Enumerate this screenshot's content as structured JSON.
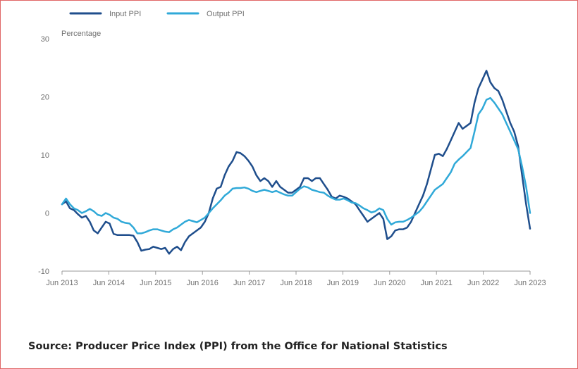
{
  "colors": {
    "input": "#1f4e8c",
    "output": "#30a9d8",
    "axis": "#9a9a9a",
    "frame": "#e06666"
  },
  "source_text": "Source: Producer Price Index (PPI) from the Office for National Statistics",
  "chart_data": {
    "type": "line",
    "ylabel": "Percentage",
    "ylim": [
      -10,
      30
    ],
    "yticks": [
      30,
      20,
      10,
      0,
      -10
    ],
    "xticks": [
      "Jun 2013",
      "Jun 2014",
      "Jun 2015",
      "Jun 2016",
      "Jun 2017",
      "Jun 2018",
      "Jun 2019",
      "Jun 2020",
      "Jun 2021",
      "Jun 2022",
      "Jun 2023"
    ],
    "x_start": "Jun 2013",
    "x_end": "Jun 2023",
    "grid": false,
    "legend_position": "top-left",
    "series": [
      {
        "name": "Input PPI",
        "color": "#1f4e8c",
        "values": [
          1.5,
          2.0,
          0.8,
          0.5,
          -0.2,
          -0.8,
          -0.5,
          -1.5,
          -3.0,
          -3.5,
          -2.5,
          -1.5,
          -1.8,
          -3.6,
          -3.8,
          -3.8,
          -3.8,
          -3.8,
          -3.9,
          -5.0,
          -6.5,
          -6.3,
          -6.2,
          -5.8,
          -6.0,
          -6.2,
          -6.0,
          -7.0,
          -6.2,
          -5.8,
          -6.4,
          -5.0,
          -4.0,
          -3.5,
          -3.0,
          -2.5,
          -1.5,
          0.0,
          2.5,
          4.2,
          4.5,
          6.5,
          8.0,
          9.0,
          10.5,
          10.3,
          9.8,
          9.0,
          8.0,
          6.5,
          5.5,
          6.0,
          5.5,
          4.5,
          5.5,
          4.5,
          4.0,
          3.5,
          3.5,
          4.0,
          4.5,
          6.0,
          6.0,
          5.5,
          6.0,
          6.0,
          5.0,
          4.0,
          2.8,
          2.5,
          3.0,
          2.8,
          2.5,
          2.0,
          1.5,
          0.5,
          -0.5,
          -1.5,
          -1.0,
          -0.5,
          0.0,
          -1.0,
          -4.5,
          -4.0,
          -3.0,
          -2.8,
          -2.8,
          -2.5,
          -1.5,
          0.0,
          1.5,
          3.0,
          5.0,
          7.5,
          10.0,
          10.2,
          9.8,
          11.0,
          12.5,
          14.0,
          15.5,
          14.5,
          15.0,
          15.5,
          19.0,
          21.5,
          23.0,
          24.5,
          22.5,
          21.5,
          21.0,
          19.5,
          17.5,
          15.5,
          14.0,
          11.5,
          6.5,
          1.5,
          -2.7
        ]
      },
      {
        "name": "Output PPI",
        "color": "#30a9d8",
        "values": [
          1.5,
          2.5,
          1.5,
          0.8,
          0.5,
          0.0,
          0.3,
          0.7,
          0.3,
          -0.3,
          -0.5,
          0.0,
          -0.3,
          -0.8,
          -1.0,
          -1.5,
          -1.7,
          -1.8,
          -2.5,
          -3.5,
          -3.5,
          -3.3,
          -3.0,
          -2.8,
          -2.8,
          -3.0,
          -3.2,
          -3.3,
          -2.8,
          -2.5,
          -2.0,
          -1.5,
          -1.2,
          -1.4,
          -1.6,
          -1.2,
          -0.8,
          0.0,
          0.8,
          1.5,
          2.2,
          3.0,
          3.5,
          4.2,
          4.3,
          4.3,
          4.4,
          4.2,
          3.8,
          3.6,
          3.8,
          4.0,
          3.8,
          3.6,
          3.8,
          3.5,
          3.2,
          3.0,
          3.0,
          3.6,
          4.2,
          4.6,
          4.4,
          4.0,
          3.8,
          3.6,
          3.5,
          3.0,
          2.6,
          2.3,
          2.3,
          2.5,
          2.2,
          1.8,
          1.7,
          1.3,
          0.8,
          0.5,
          0.1,
          0.3,
          0.8,
          0.5,
          -1.0,
          -2.0,
          -1.6,
          -1.5,
          -1.5,
          -1.2,
          -0.8,
          -0.3,
          0.2,
          1.0,
          2.0,
          3.0,
          4.0,
          4.5,
          5.0,
          6.0,
          7.0,
          8.5,
          9.2,
          9.8,
          10.5,
          11.2,
          14.0,
          17.0,
          18.0,
          19.5,
          19.8,
          19.0,
          18.0,
          17.0,
          15.5,
          14.0,
          12.5,
          11.0,
          8.0,
          4.5,
          0.0
        ]
      }
    ]
  }
}
